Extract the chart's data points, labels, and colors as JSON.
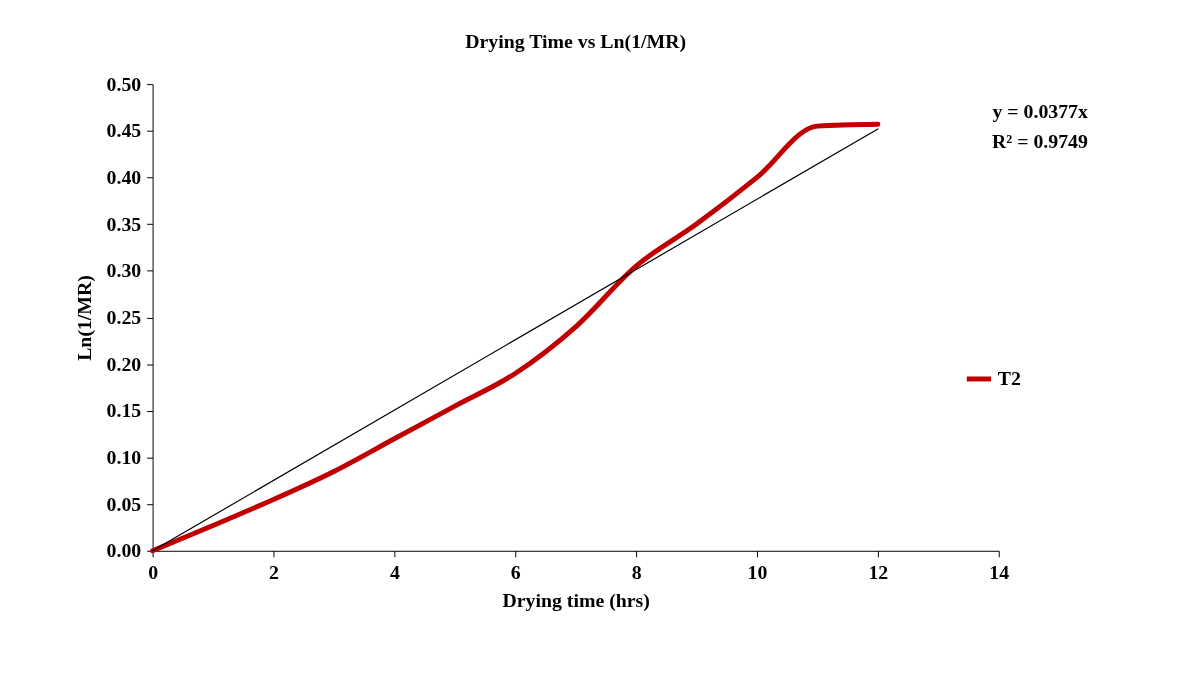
{
  "chart_data": {
    "type": "line",
    "title": "Drying Time vs Ln(1/MR)",
    "xlabel": "Drying time (hrs)",
    "ylabel": "Ln(1/MR)",
    "xlim": [
      0,
      14
    ],
    "xticks": [
      0,
      2,
      4,
      6,
      8,
      10,
      12,
      14
    ],
    "ylim": [
      0,
      0.5
    ],
    "yticks": [
      {
        "value": 0,
        "label": "0.00"
      },
      {
        "value": 0.05,
        "label": "0.05"
      },
      {
        "value": 0.1,
        "label": "0.10"
      },
      {
        "value": 0.15,
        "label": "0.15"
      },
      {
        "value": 0.2,
        "label": "0.20"
      },
      {
        "value": 0.25,
        "label": "0.25"
      },
      {
        "value": 0.3,
        "label": "0.30"
      },
      {
        "value": 0.35,
        "label": "0.35"
      },
      {
        "value": 0.4,
        "label": "0.40"
      },
      {
        "value": 0.45,
        "label": "0.45"
      },
      {
        "value": 0.5,
        "label": "0.50"
      }
    ],
    "grid": false,
    "legend": "right",
    "marker": "none",
    "line_style": "solid",
    "series": [
      {
        "name": "T2",
        "color": "#c00000",
        "x": [
          0,
          1,
          2,
          3,
          4,
          5,
          6,
          7,
          8,
          9,
          10,
          11,
          12
        ],
        "values": [
          0,
          0.027,
          0.055,
          0.085,
          0.12,
          0.155,
          0.19,
          0.24,
          0.305,
          0.35,
          0.4,
          0.455,
          0.457
        ]
      },
      {
        "type": "line",
        "color": "#000000",
        "x": [
          0,
          12
        ],
        "values": [
          0,
          0.452
        ]
      }
    ],
    "annotations": [
      "y = 0.0377x",
      "R² = 0.9749"
    ]
  }
}
